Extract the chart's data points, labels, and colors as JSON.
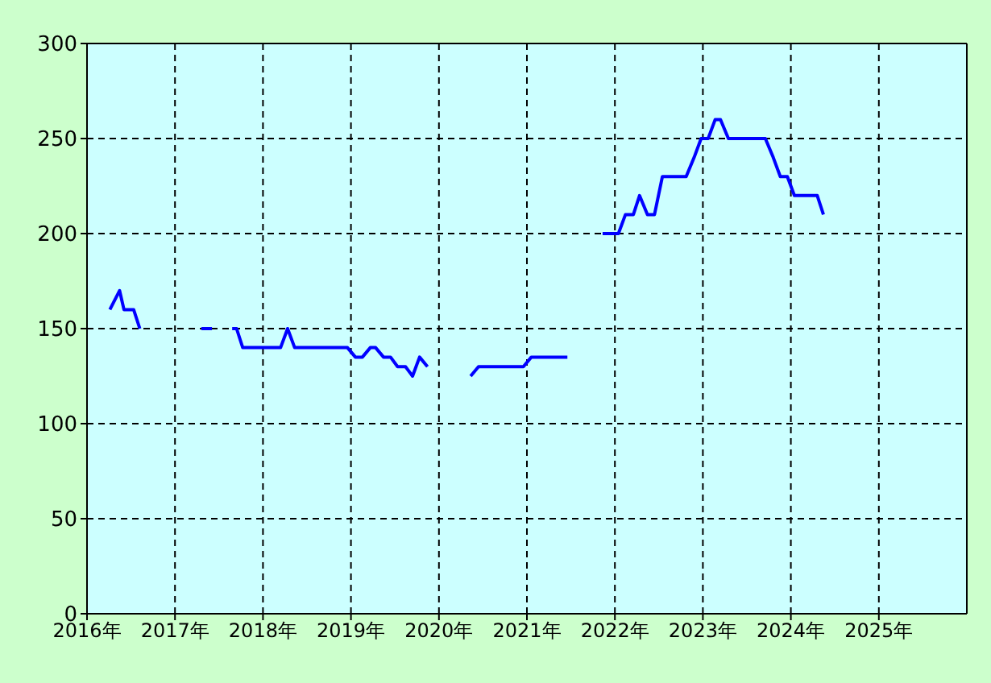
{
  "chart_data": {
    "type": "line",
    "x": [
      2016.26,
      2016.37,
      2016.42,
      2016.53,
      2016.6,
      2016.9,
      2017.3,
      2017.42,
      2017.5,
      2017.65,
      2017.7,
      2017.77,
      2018.2,
      2018.28,
      2018.36,
      2018.96,
      2019.05,
      2019.13,
      2019.22,
      2019.28,
      2019.37,
      2019.45,
      2019.53,
      2019.62,
      2019.7,
      2019.78,
      2019.87,
      2020.1,
      2020.36,
      2020.45,
      2020.96,
      2021.05,
      2021.46,
      2021.7,
      2021.86,
      2022.04,
      2022.12,
      2022.21,
      2022.28,
      2022.37,
      2022.45,
      2022.54,
      2022.81,
      2022.9,
      2022.98,
      2023.06,
      2023.14,
      2023.2,
      2023.29,
      2023.71,
      2023.8,
      2023.88,
      2023.96,
      2024.04,
      2024.3,
      2024.37
    ],
    "series": [
      {
        "color": "#0000ff",
        "values": [
          160,
          170,
          160,
          160,
          150,
          null,
          150,
          150,
          null,
          150,
          150,
          140,
          140,
          150,
          140,
          140,
          135,
          135,
          140,
          140,
          135,
          135,
          130,
          130,
          125,
          135,
          130,
          null,
          125,
          130,
          130,
          135,
          135,
          null,
          200,
          200,
          210,
          210,
          220,
          210,
          210,
          230,
          230,
          240,
          250,
          250,
          260,
          260,
          250,
          250,
          240,
          230,
          230,
          220,
          220,
          210
        ]
      }
    ],
    "xlim": [
      2016,
      2026
    ],
    "xticks": [
      {
        "value": 2016,
        "label": "2016年"
      },
      {
        "value": 2017,
        "label": "2017年"
      },
      {
        "value": 2018,
        "label": "2018年"
      },
      {
        "value": 2019,
        "label": "2019年"
      },
      {
        "value": 2020,
        "label": "2020年"
      },
      {
        "value": 2021,
        "label": "2021年"
      },
      {
        "value": 2022,
        "label": "2022年"
      },
      {
        "value": 2023,
        "label": "2023年"
      },
      {
        "value": 2024,
        "label": "2024年"
      },
      {
        "value": 2025,
        "label": "2025年"
      }
    ],
    "ylim": [
      0,
      300
    ],
    "yticks": [
      0,
      50,
      100,
      150,
      200,
      250,
      300
    ],
    "grid": true,
    "marker": "none",
    "line_style": "solid"
  }
}
